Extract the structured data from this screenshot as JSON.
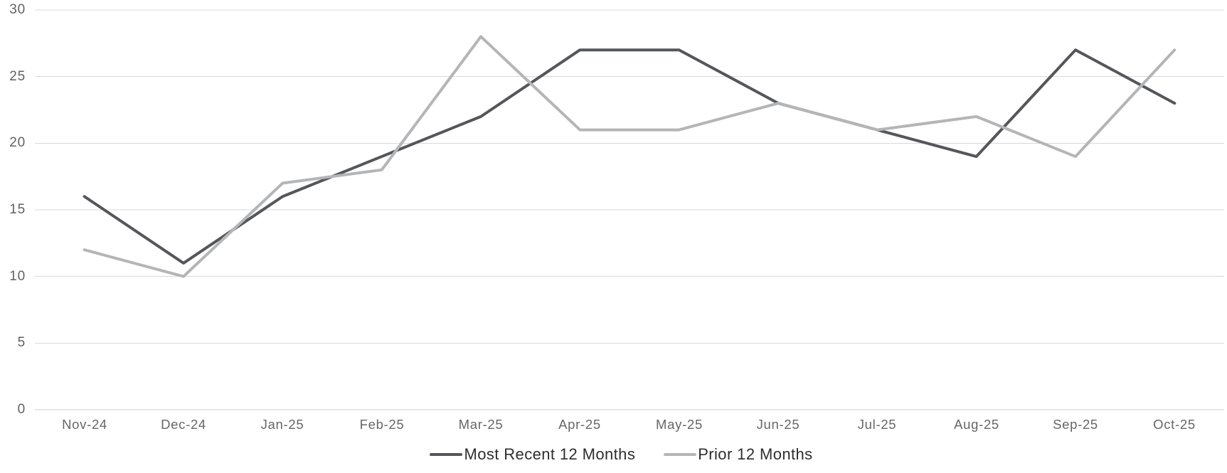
{
  "chart_data": {
    "type": "line",
    "categories": [
      "Nov-24",
      "Dec-24",
      "Jan-25",
      "Feb-25",
      "Mar-25",
      "Apr-25",
      "May-25",
      "Jun-25",
      "Jul-25",
      "Aug-25",
      "Sep-25",
      "Oct-25"
    ],
    "series": [
      {
        "name": "Most Recent 12 Months",
        "color": "#54565a",
        "values": [
          16,
          11,
          16,
          19,
          22,
          27,
          27,
          23,
          21,
          19,
          27,
          23
        ]
      },
      {
        "name": "Prior 12 Months",
        "color": "#b4b5b7",
        "values": [
          12,
          10,
          17,
          18,
          28,
          21,
          21,
          23,
          21,
          22,
          19,
          27
        ]
      }
    ],
    "title": "",
    "xlabel": "",
    "ylabel": "",
    "ylim": [
      0,
      30
    ],
    "yticks": [
      30,
      25,
      20,
      15,
      10,
      5,
      0
    ],
    "grid": "horizontal",
    "gridline_color": "#d9d9d9",
    "baseline_color": "#cccccc",
    "legend_position": "bottom-center"
  }
}
